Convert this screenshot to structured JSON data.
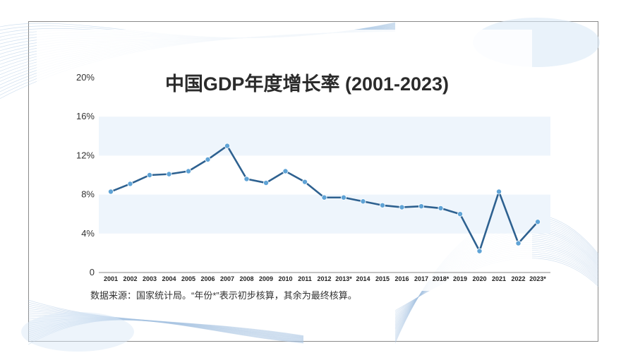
{
  "colors": {
    "line": "#2e6190",
    "marker": "#5fa3d6",
    "band": "#eef5fc",
    "decoration": "#a9c6e3",
    "axis": "#888888"
  },
  "chart_data": {
    "type": "line",
    "title": "中国GDP年度增长率 (2001-2023)",
    "categories": [
      "2001",
      "2002",
      "2003",
      "2004",
      "2005",
      "2006",
      "2007",
      "2008",
      "2009",
      "2010",
      "2011",
      "2012",
      "2013*",
      "2014",
      "2015",
      "2016",
      "2017",
      "2018*",
      "2019",
      "2020",
      "2021",
      "2022",
      "2023*"
    ],
    "series": [
      {
        "values": [
          8.3,
          9.1,
          10.0,
          10.1,
          10.4,
          11.6,
          13.0,
          9.6,
          9.2,
          10.4,
          9.3,
          7.7,
          7.7,
          7.3,
          6.9,
          6.7,
          6.8,
          6.6,
          6.0,
          2.2,
          8.3,
          3.0,
          5.2
        ]
      }
    ],
    "ylim": [
      0,
      20
    ],
    "yticks": [
      "0",
      "4%",
      "8%",
      "12%",
      "16%",
      "20%"
    ],
    "ytick_values": [
      0,
      4,
      8,
      12,
      16,
      20
    ],
    "grid": "alternating horizontal bands",
    "source_note": "数据来源：国家统计局。“年份*”表示初步核算，其余为最终核算。"
  }
}
